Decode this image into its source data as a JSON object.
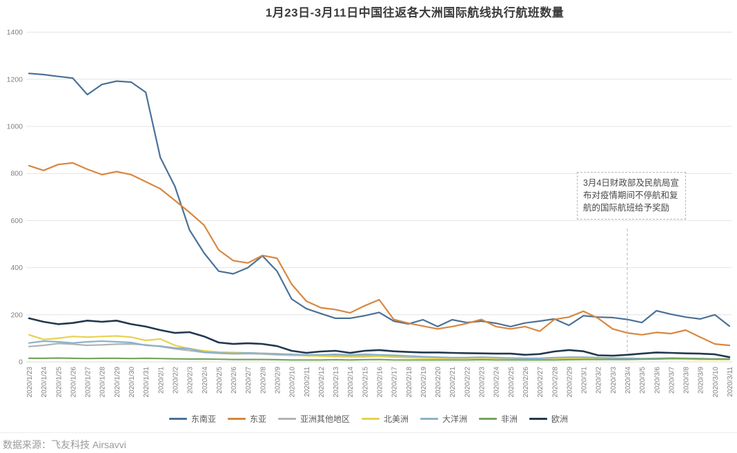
{
  "title": "1月23日-3月11日中国往返各大洲国际航线执行航班数量",
  "source": "数据来源：飞友科技 Airsavvi",
  "annotation": {
    "text": "3月4日财政部及民航局宣布对疫情期间不停航和复航的国际航班给予奖励",
    "target_date": "2020/3/4"
  },
  "chart_data": {
    "type": "line",
    "title": "1月23日-3月11日中国往返各大洲国际航线执行航班数量",
    "xlabel": "",
    "ylabel": "",
    "ylim": [
      0,
      1400
    ],
    "ytick_step": 200,
    "grid": true,
    "legend_position": "bottom",
    "x": [
      "2020/1/23",
      "2020/1/24",
      "2020/1/25",
      "2020/1/26",
      "2020/1/27",
      "2020/1/28",
      "2020/1/29",
      "2020/1/30",
      "2020/1/31",
      "2020/2/1",
      "2020/2/2",
      "2020/2/3",
      "2020/2/4",
      "2020/2/5",
      "2020/2/6",
      "2020/2/7",
      "2020/2/8",
      "2020/2/9",
      "2020/2/10",
      "2020/2/11",
      "2020/2/12",
      "2020/2/13",
      "2020/2/14",
      "2020/2/15",
      "2020/2/16",
      "2020/2/17",
      "2020/2/18",
      "2020/2/19",
      "2020/2/20",
      "2020/2/21",
      "2020/2/22",
      "2020/2/23",
      "2020/2/24",
      "2020/2/25",
      "2020/2/26",
      "2020/2/27",
      "2020/2/28",
      "2020/2/29",
      "2020/3/1",
      "2020/3/2",
      "2020/3/3",
      "2020/3/4",
      "2020/3/5",
      "2020/3/6",
      "2020/3/7",
      "2020/3/8",
      "2020/3/9",
      "2020/3/10",
      "2020/3/11"
    ],
    "series": [
      {
        "name": "东南亚",
        "color": "#4a7198",
        "values": [
          1225,
          1220,
          1212,
          1205,
          1135,
          1178,
          1192,
          1188,
          1145,
          868,
          745,
          560,
          462,
          385,
          374,
          400,
          450,
          385,
          267,
          226,
          205,
          185,
          185,
          196,
          210,
          173,
          161,
          179,
          150,
          179,
          167,
          173,
          164,
          150,
          165,
          173,
          182,
          155,
          196,
          190,
          188,
          180,
          167,
          217,
          202,
          190,
          182,
          200,
          152
        ]
      },
      {
        "name": "东亚",
        "color": "#d8873f",
        "values": [
          833,
          813,
          838,
          845,
          818,
          795,
          808,
          795,
          765,
          735,
          685,
          635,
          580,
          475,
          430,
          420,
          452,
          440,
          330,
          258,
          230,
          222,
          208,
          238,
          264,
          180,
          164,
          152,
          140,
          150,
          163,
          180,
          150,
          140,
          150,
          130,
          180,
          190,
          215,
          185,
          140,
          123,
          115,
          125,
          120,
          135,
          105,
          76,
          70
        ]
      },
      {
        "name": "亚洲其他地区",
        "color": "#b3b3b3",
        "values": [
          65,
          70,
          78,
          75,
          70,
          72,
          75,
          76,
          72,
          65,
          55,
          48,
          40,
          36,
          34,
          35,
          33,
          30,
          28,
          26,
          25,
          26,
          24,
          25,
          24,
          22,
          20,
          18,
          17,
          16,
          16,
          17,
          15,
          14,
          13,
          13,
          15,
          16,
          16,
          15,
          14,
          13,
          12,
          13,
          13,
          12,
          11,
          10,
          10
        ]
      },
      {
        "name": "北美洲",
        "color": "#e6d24f",
        "values": [
          115,
          95,
          100,
          108,
          105,
          108,
          110,
          105,
          91,
          97,
          70,
          56,
          47,
          42,
          40,
          38,
          36,
          34,
          30,
          26,
          24,
          22,
          21,
          21,
          23,
          20,
          18,
          16,
          15,
          14,
          15,
          16,
          14,
          13,
          12,
          12,
          14,
          15,
          16,
          14,
          12,
          12,
          11,
          12,
          12,
          11,
          10,
          10,
          10
        ]
      },
      {
        "name": "大洋洲",
        "color": "#8cb2ca",
        "values": [
          80,
          88,
          85,
          80,
          85,
          88,
          85,
          82,
          70,
          67,
          59,
          56,
          41,
          38,
          36,
          38,
          36,
          34,
          32,
          30,
          30,
          32,
          30,
          32,
          30,
          28,
          25,
          22,
          20,
          18,
          18,
          20,
          18,
          16,
          15,
          15,
          18,
          20,
          20,
          18,
          16,
          15,
          14,
          15,
          16,
          15,
          14,
          12,
          12
        ]
      },
      {
        "name": "非洲",
        "color": "#77a55f",
        "values": [
          15,
          15,
          16,
          15,
          14,
          15,
          15,
          14,
          15,
          14,
          13,
          12,
          12,
          11,
          10,
          10,
          10,
          9,
          8,
          8,
          8,
          9,
          8,
          9,
          10,
          8,
          8,
          8,
          8,
          8,
          8,
          9,
          8,
          8,
          8,
          8,
          8,
          9,
          10,
          10,
          10,
          10,
          11,
          12,
          15,
          14,
          13,
          12,
          12
        ]
      },
      {
        "name": "欧洲",
        "color": "#22384e",
        "values": [
          185,
          170,
          160,
          165,
          175,
          170,
          175,
          160,
          150,
          135,
          123,
          126,
          108,
          82,
          76,
          79,
          76,
          67,
          47,
          38,
          44,
          47,
          38,
          47,
          50,
          45,
          42,
          40,
          40,
          38,
          37,
          36,
          35,
          35,
          30,
          33,
          44,
          50,
          45,
          28,
          26,
          30,
          35,
          40,
          38,
          36,
          35,
          32,
          20
        ]
      }
    ]
  }
}
